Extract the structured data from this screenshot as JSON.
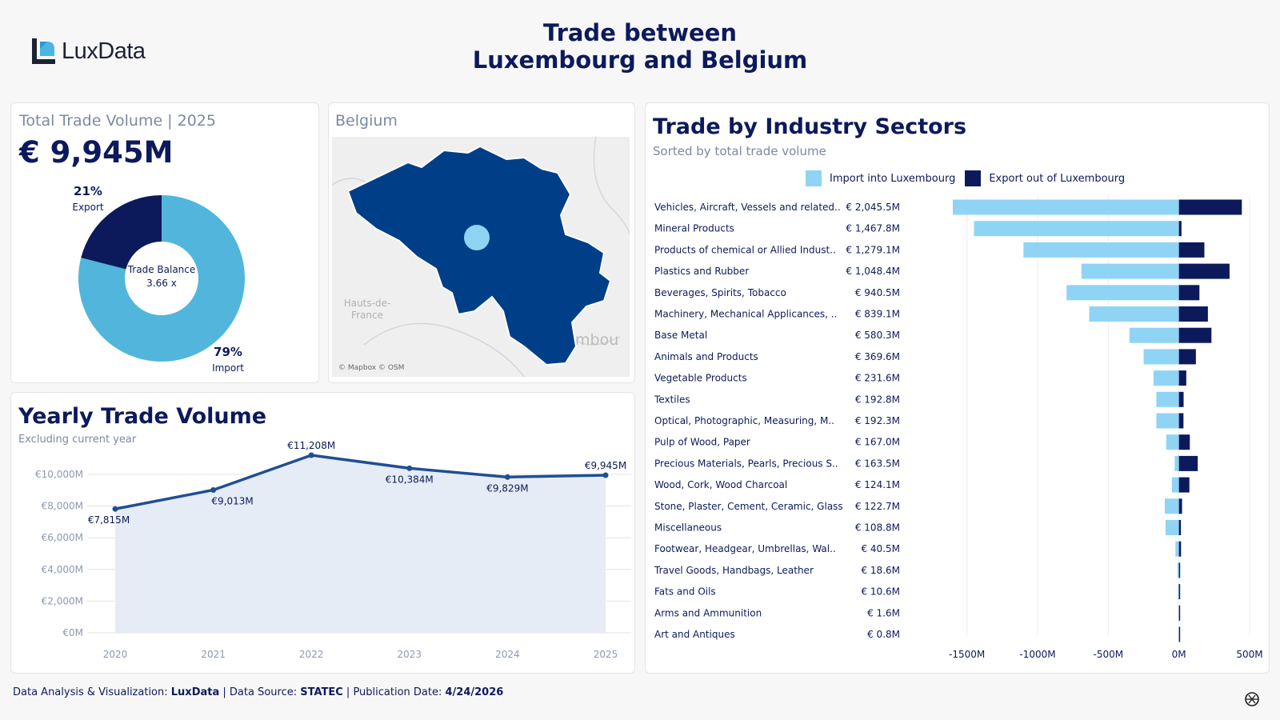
{
  "brand": {
    "logo_light": "Lux",
    "logo_bold": "Data"
  },
  "title": {
    "line1": "Trade between",
    "line2": "Luxembourg and Belgium"
  },
  "kpi": {
    "label": "Total Trade Volume | 2025",
    "value": "€ 9,945M",
    "export_pct": "21%",
    "export_label": "Export",
    "import_pct": "79%",
    "import_label": "Import",
    "center_line1": "Trade Balance",
    "center_line2": "3.66 x",
    "export_share": 0.21
  },
  "map": {
    "label": "Belgium",
    "place1": "Hauts-de-",
    "place2": "France",
    "place3": "mbou",
    "credit": "© Mapbox © OSM"
  },
  "sectors": {
    "title": "Trade by Industry Sectors",
    "subtitle": "Sorted by total trade volume",
    "legend_import": "Import into Luxembourg",
    "legend_export": "Export out of Luxembourg"
  },
  "yearly": {
    "title": "Yearly Trade Volume",
    "subtitle": "Excluding current year"
  },
  "footer": {
    "p1": "Data Analysis & Visualization: ",
    "b1": "LuxData",
    "p2": " | Data Source: ",
    "b2": "STATEC",
    "p3": " | Publication Date: ",
    "b3": "4/24/2026"
  },
  "colors": {
    "navy": "#0c1a5b",
    "import_light": "#8fd4f5",
    "donut_import": "#52b5dc",
    "map_fill": "#003f87",
    "line": "#1f4e94"
  },
  "chart_data": [
    {
      "type": "pie",
      "title": "Total Trade Volume | 2025",
      "categories": [
        "Export",
        "Import"
      ],
      "values": [
        21,
        79
      ]
    },
    {
      "type": "bar",
      "title": "Trade by Industry Sectors",
      "subtitle": "Sorted by total trade volume",
      "orientation": "horizontal",
      "categories": [
        "Vehicles, Aircraft, Vessels and related..",
        "Mineral Products",
        "Products of chemical or Allied Indust..",
        "Plastics and Rubber",
        "Beverages, Spirits, Tobacco",
        "Machinery, Mechanical Applicances, ..",
        "Base Metal",
        "Animals and Products",
        "Vegetable Products",
        "Textiles",
        "Optical, Photographic, Measuring, M..",
        "Pulp of Wood, Paper",
        "Precious Materials, Pearls, Precious S..",
        "Wood, Cork, Wood Charcoal",
        "Stone, Plaster, Cement, Ceramic, Glass",
        "Miscellaneous",
        "Footwear, Headgear, Umbrellas, Wal..",
        "Travel Goods, Handbags, Leather",
        "Fats and Oils",
        "Arms and Ammunition",
        "Art and Antiques"
      ],
      "totals": [
        "€ 2,045.5M",
        "€ 1,467.8M",
        "€ 1,279.1M",
        "€ 1,048.4M",
        "€ 940.5M",
        "€ 839.1M",
        "€ 580.3M",
        "€ 369.6M",
        "€ 231.6M",
        "€ 192.8M",
        "€ 192.3M",
        "€ 167.0M",
        "€ 163.5M",
        "€ 124.1M",
        "€ 122.7M",
        "€ 108.8M",
        "€ 40.5M",
        "€ 18.6M",
        "€ 10.6M",
        "€ 1.6M",
        "€ 0.8M"
      ],
      "series": [
        {
          "name": "Import into Luxembourg",
          "values": [
            -1600,
            -1450,
            -1100,
            -690,
            -795,
            -635,
            -350,
            -250,
            -180,
            -160,
            -160,
            -90,
            -30,
            -50,
            -100,
            -95,
            -25,
            -10,
            -7,
            -1,
            -0.5
          ]
        },
        {
          "name": "Export out of Luxembourg",
          "values": [
            445,
            18,
            180,
            358,
            145,
            205,
            230,
            120,
            52,
            33,
            32,
            77,
            133,
            74,
            22,
            14,
            15,
            8,
            4,
            0.6,
            0.3
          ]
        }
      ],
      "xlim": [
        -1600,
        500
      ],
      "xticks": [
        -1500,
        -1000,
        -500,
        0,
        500
      ],
      "xtick_labels": [
        "-1500M",
        "-1000M",
        "-500M",
        "0M",
        "500M"
      ]
    },
    {
      "type": "area",
      "title": "Yearly Trade Volume",
      "subtitle": "Excluding current year",
      "x": [
        "2020",
        "2021",
        "2022",
        "2023",
        "2024",
        "2025"
      ],
      "values": [
        7815,
        9013,
        11208,
        10384,
        9829,
        9945
      ],
      "labels": [
        "€7,815M",
        "€9,013M",
        "€11,208M",
        "€10,384M",
        "€9,829M",
        "€9,945M"
      ],
      "ylim": [
        0,
        11208
      ],
      "yticks": [
        0,
        2000,
        4000,
        6000,
        8000,
        10000
      ],
      "ytick_labels": [
        "€0M",
        "€2,000M",
        "€4,000M",
        "€6,000M",
        "€8,000M",
        "€10,000M"
      ],
      "grid": true
    }
  ]
}
